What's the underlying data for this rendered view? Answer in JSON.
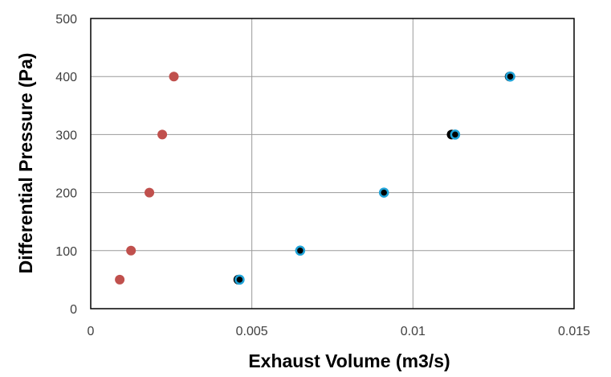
{
  "chart_data": {
    "type": "scatter",
    "title": "",
    "xlabel": "Exhaust Volume (m3/s)",
    "ylabel": "Differential Pressure (Pa)",
    "xlim": [
      0,
      0.015
    ],
    "ylim": [
      0,
      500
    ],
    "x_ticks": [
      0,
      0.005,
      0.01,
      0.015
    ],
    "x_tick_labels": [
      "0",
      "0.005",
      "0.01",
      "0.015"
    ],
    "y_ticks": [
      0,
      100,
      200,
      300,
      400,
      500
    ],
    "y_tick_labels": [
      "0",
      "100",
      "200",
      "300",
      "400",
      "500"
    ],
    "grid": true,
    "legend": "none",
    "series": [
      {
        "color": "#c0504d",
        "marker": "filled-circle",
        "points": [
          {
            "x": 0.0009,
            "y": 50
          },
          {
            "x": 0.00125,
            "y": 100
          },
          {
            "x": 0.00182,
            "y": 200
          },
          {
            "x": 0.00222,
            "y": 300
          },
          {
            "x": 0.00258,
            "y": 400
          }
        ]
      },
      {
        "color": "#000000",
        "marker": "filled-circle",
        "points": [
          {
            "x": 0.00458,
            "y": 50
          },
          {
            "x": 0.0065,
            "y": 100
          },
          {
            "x": 0.0091,
            "y": 200
          },
          {
            "x": 0.0112,
            "y": 300
          },
          {
            "x": 0.013,
            "y": 400
          }
        ]
      },
      {
        "color": "#000000",
        "edge_color": "#1fa3d8",
        "marker": "filled-circle-outlined",
        "points": [
          {
            "x": 0.00462,
            "y": 50
          },
          {
            "x": 0.0065,
            "y": 100
          },
          {
            "x": 0.0091,
            "y": 200
          },
          {
            "x": 0.01131,
            "y": 300
          },
          {
            "x": 0.01302,
            "y": 400
          }
        ]
      }
    ]
  }
}
